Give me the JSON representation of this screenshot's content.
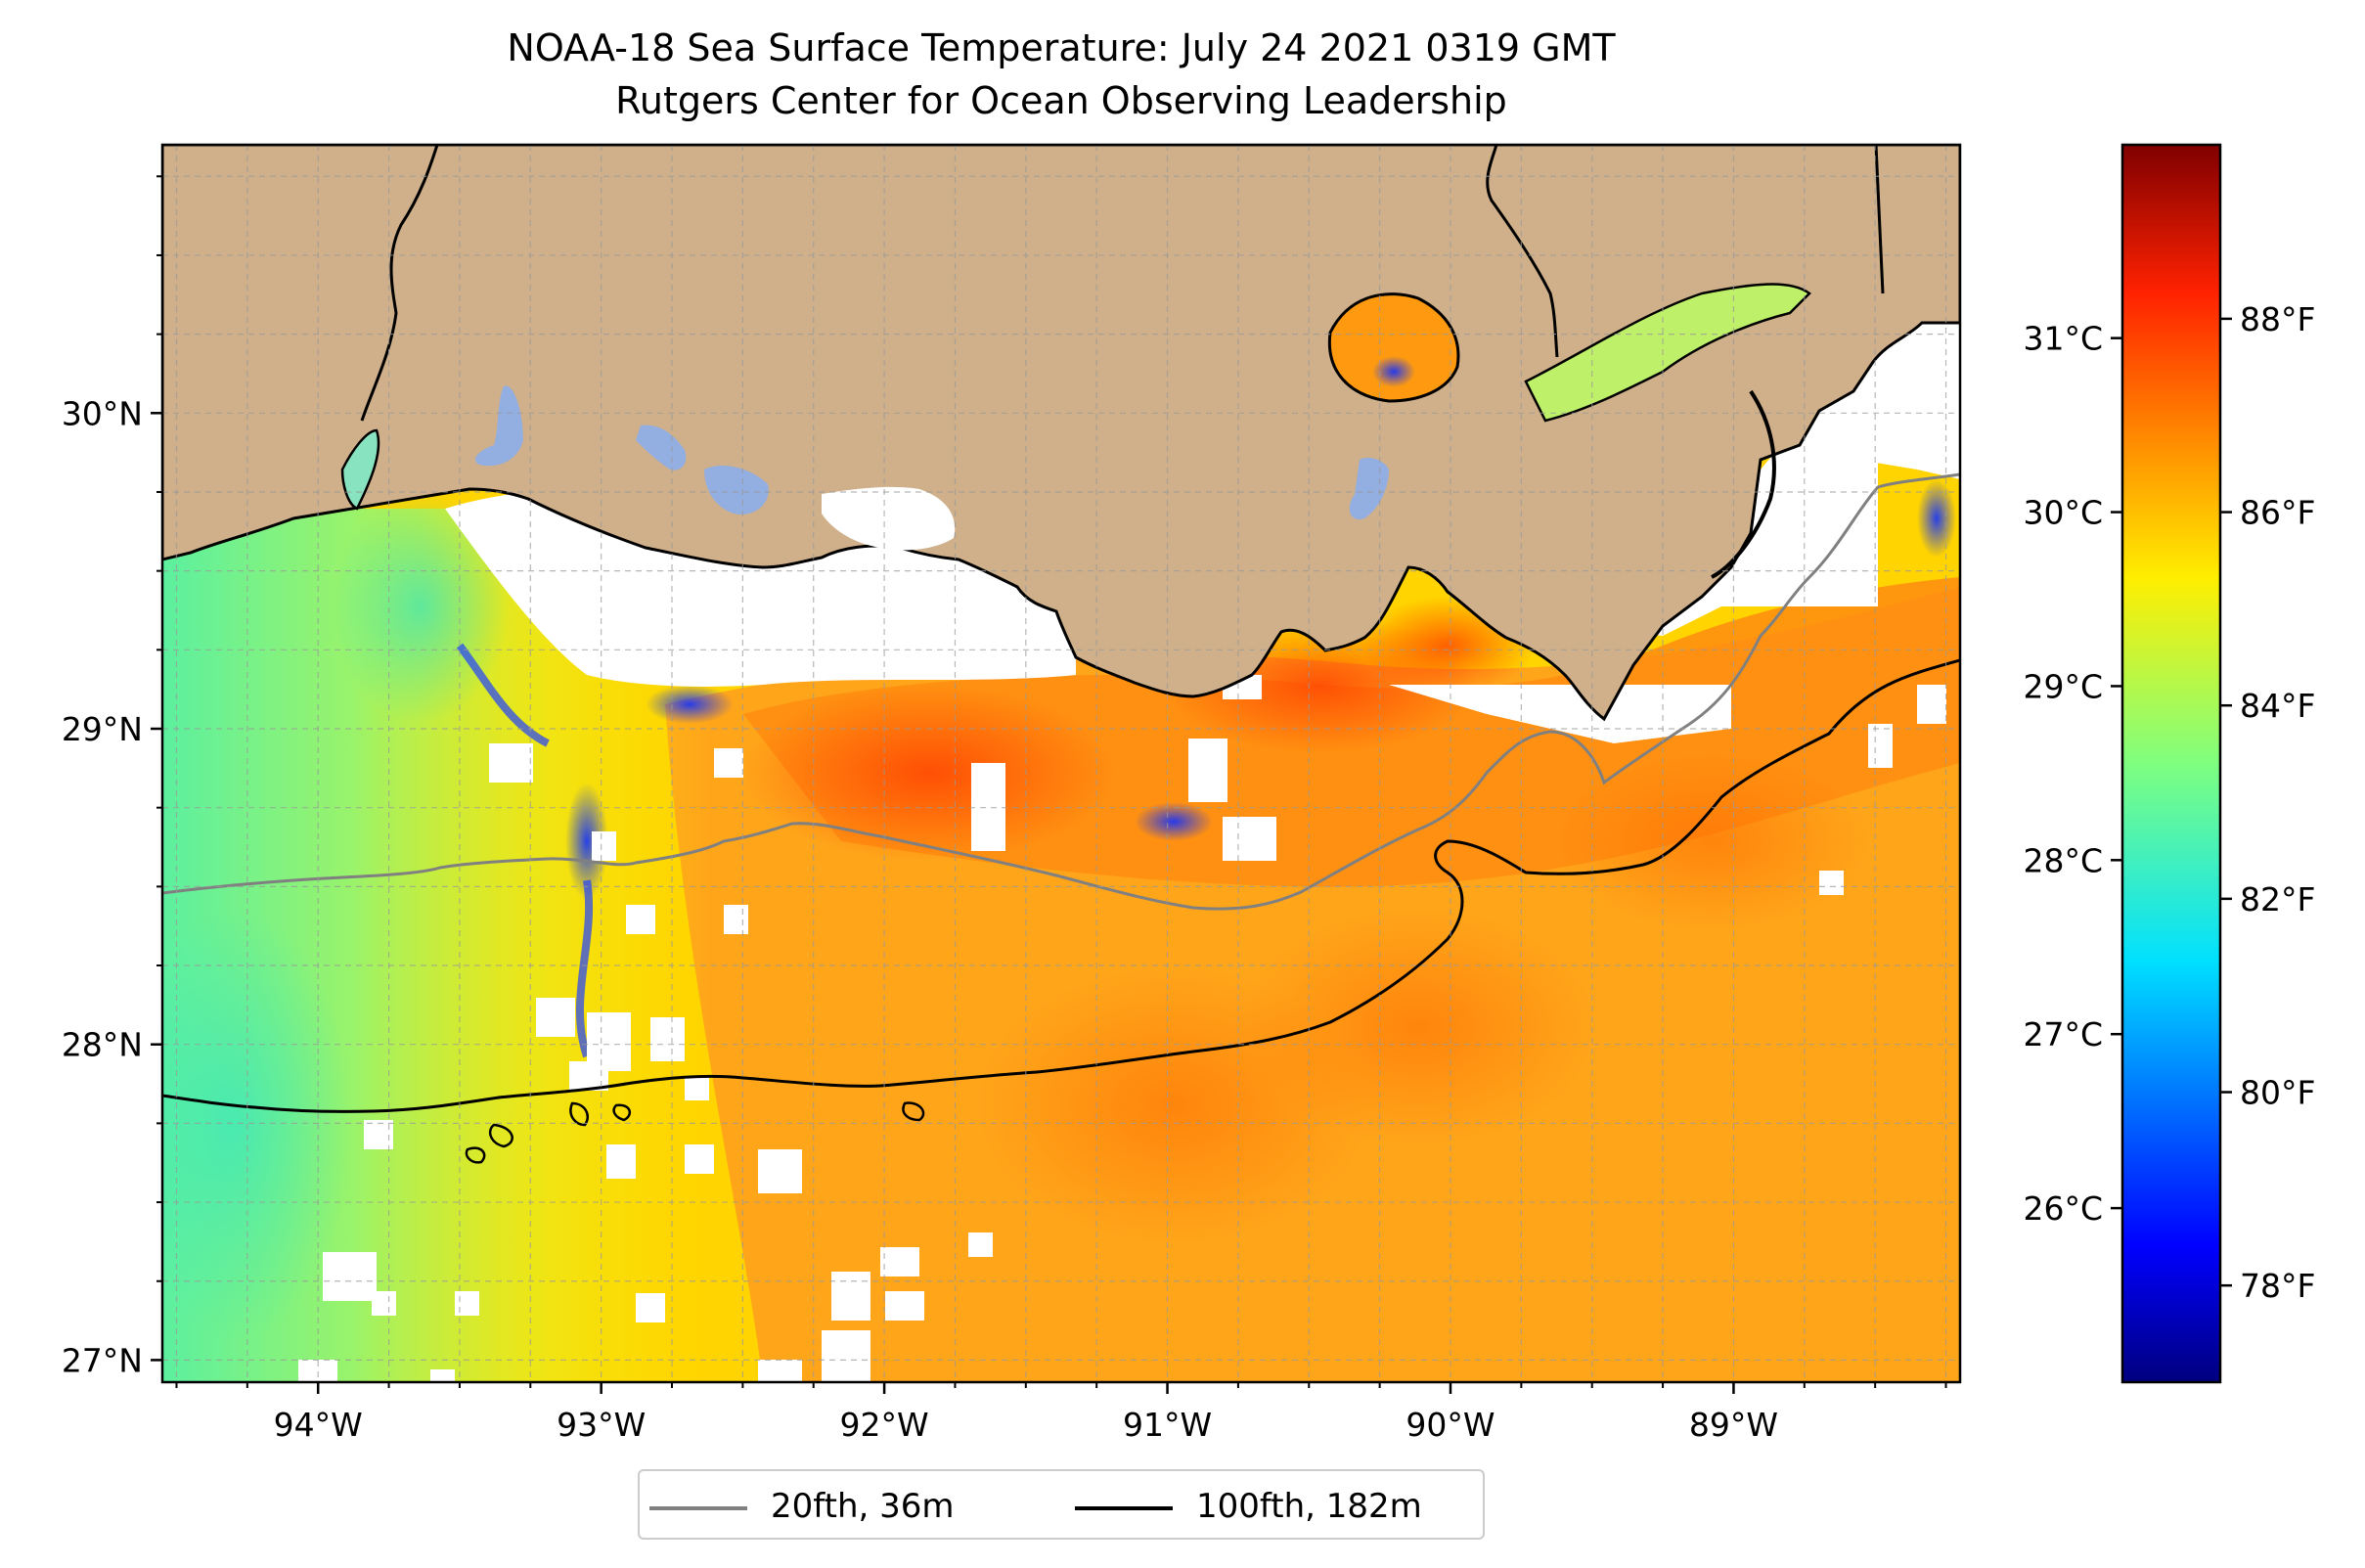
{
  "title_line1": "NOAA-18 Sea Surface Temperature: July 24 2021 0319 GMT",
  "title_line2": "Rutgers Center for Ocean Observing Leadership",
  "map": {
    "lon_range": [
      -94.55,
      -88.2
    ],
    "lat_range": [
      26.93,
      30.85
    ],
    "lon_ticks": [
      {
        "value": -94,
        "label": "94°W"
      },
      {
        "value": -93,
        "label": "93°W"
      },
      {
        "value": -92,
        "label": "92°W"
      },
      {
        "value": -91,
        "label": "91°W"
      },
      {
        "value": -90,
        "label": "90°W"
      },
      {
        "value": -89,
        "label": "89°W"
      }
    ],
    "lat_ticks": [
      {
        "value": 27,
        "label": "27°N"
      },
      {
        "value": 28,
        "label": "28°N"
      },
      {
        "value": 29,
        "label": "29°N"
      },
      {
        "value": 30,
        "label": "30°N"
      }
    ],
    "land_color": "#cfb08a",
    "lake_color": "#93aee0",
    "gridlines": "dashed"
  },
  "colorbar": {
    "colormap": "jet",
    "range_f": [
      77.0,
      89.8
    ],
    "fahrenheit_ticks": [
      {
        "value": 78,
        "label": "78°F"
      },
      {
        "value": 80,
        "label": "80°F"
      },
      {
        "value": 82,
        "label": "82°F"
      },
      {
        "value": 84,
        "label": "84°F"
      },
      {
        "value": 86,
        "label": "86°F"
      },
      {
        "value": 88,
        "label": "88°F"
      }
    ],
    "celsius_ticks": [
      {
        "value": 26,
        "label": "26°C"
      },
      {
        "value": 27,
        "label": "27°C"
      },
      {
        "value": 28,
        "label": "28°C"
      },
      {
        "value": 29,
        "label": "29°C"
      },
      {
        "value": 30,
        "label": "30°C"
      },
      {
        "value": 31,
        "label": "31°C"
      }
    ]
  },
  "legend": {
    "items": [
      {
        "label": "20fth, 36m",
        "color": "#808080"
      },
      {
        "label": "100fth, 182m",
        "color": "#000000"
      }
    ]
  }
}
